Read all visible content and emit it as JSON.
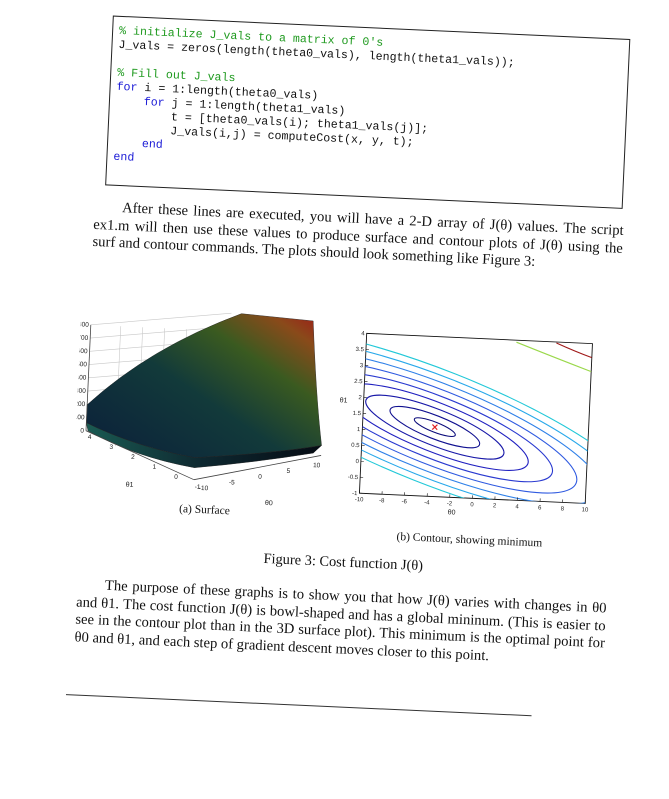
{
  "code": {
    "lines": [
      {
        "text": "% initialize J_vals to a matrix of 0's",
        "kind": "comment"
      },
      {
        "text": "J_vals = zeros(length(theta0_vals), length(theta1_vals));",
        "kind": "plain"
      },
      {
        "text": "",
        "kind": "plain"
      },
      {
        "text": "% Fill out J_vals",
        "kind": "comment"
      },
      {
        "text": "for",
        "kind": "keyword",
        "rest": " i = 1:length(theta0_vals)"
      },
      {
        "text": "    for",
        "kind": "keyword",
        "rest": " j = 1:length(theta1_vals)"
      },
      {
        "text": "        t = [theta0_vals(i); theta1_vals(j)];",
        "kind": "plain"
      },
      {
        "text": "        J_vals(i,j) = computeCost(x, y, t);",
        "kind": "plain"
      },
      {
        "text": "    end",
        "kind": "keyword",
        "rest": ""
      },
      {
        "text": "end",
        "kind": "keyword",
        "rest": ""
      }
    ]
  },
  "paragraph1": "After these lines are executed, you will have a 2-D array of J(θ) values. The script ex1.m will then use these values to produce surface and contour plots of J(θ) using the surf and contour commands. The plots should look something like Figure 3:",
  "figure": {
    "caption_a": "(a) Surface",
    "caption_b": "(b) Contour, showing minimum",
    "caption": "Figure 3: Cost function J(θ)"
  },
  "paragraph2": "The purpose of these graphs is to show you that how J(θ) varies with changes in θ0 and θ1. The cost function J(θ) is bowl-shaped and has a global mininum. (This is easier to see in the contour plot than in the 3D surface plot). This minimum is the optimal point for θ0 and θ1, and each step of gradient descent moves closer to this point.",
  "chart_data": [
    {
      "type": "surface",
      "z_ticks": [
        "800",
        "700",
        "600",
        "500",
        "400",
        "300",
        "200",
        "100",
        "0"
      ],
      "x_ticks": [
        "-10",
        "-5",
        "0",
        "5",
        "10"
      ],
      "y_ticks": [
        "4",
        "3",
        "2",
        "1",
        "0",
        "-1"
      ],
      "xlabel": "θ0",
      "ylabel": "θ1",
      "zlim": [
        0,
        800
      ]
    },
    {
      "type": "contour",
      "xlabel": "θ0",
      "ylabel": "θ1",
      "xlim": [
        -10,
        10
      ],
      "ylim": [
        -1,
        4
      ],
      "x_ticks": [
        "-10",
        "-8",
        "-6",
        "-4",
        "-2",
        "0",
        "2",
        "4",
        "6",
        "8",
        "10"
      ],
      "y_ticks": [
        "-1",
        "-0.5",
        "0",
        "0.5",
        "1",
        "1.5",
        "2",
        "2.5",
        "3",
        "3.5",
        "4"
      ],
      "minimum": {
        "x": -3.6,
        "y": 1.17,
        "marker": "x",
        "color": "#e02020"
      }
    }
  ]
}
